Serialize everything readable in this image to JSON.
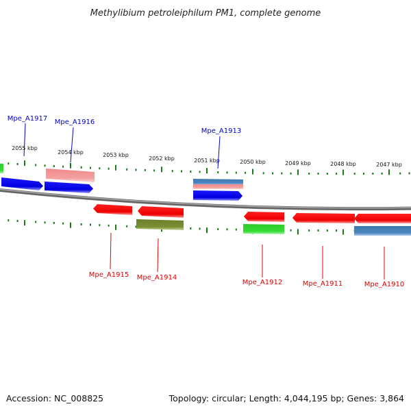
{
  "title": "Methylibium petroleiphilum PM1, complete genome",
  "footer": {
    "accession": "Accession: NC_008825",
    "topology": "Topology: circular; Length: 4,044,195 bp; Genes: 3,864"
  },
  "colors": {
    "label_forward": "#0000cc",
    "label_reverse": "#dd0000",
    "tick": "#1a7a1a",
    "backbone": "#888888"
  },
  "ticks": [
    {
      "label": "2055 kbp"
    },
    {
      "label": "2054 kbp"
    },
    {
      "label": "2053 kbp"
    },
    {
      "label": "2052 kbp"
    },
    {
      "label": "2051 kbp"
    },
    {
      "label": "2050 kbp"
    },
    {
      "label": "2049 kbp"
    },
    {
      "label": "2048 kbp"
    },
    {
      "label": "2047 kbp"
    }
  ],
  "genes": [
    {
      "name": "Mpe_A1917",
      "strand": "forward"
    },
    {
      "name": "Mpe_A1916",
      "strand": "forward"
    },
    {
      "name": "Mpe_A1913",
      "strand": "forward"
    },
    {
      "name": "Mpe_A1915",
      "strand": "reverse"
    },
    {
      "name": "Mpe_A1914",
      "strand": "reverse"
    },
    {
      "name": "Mpe_A1912",
      "strand": "reverse"
    },
    {
      "name": "Mpe_A1911",
      "strand": "reverse"
    },
    {
      "name": "Mpe_A1910",
      "strand": "reverse"
    }
  ]
}
